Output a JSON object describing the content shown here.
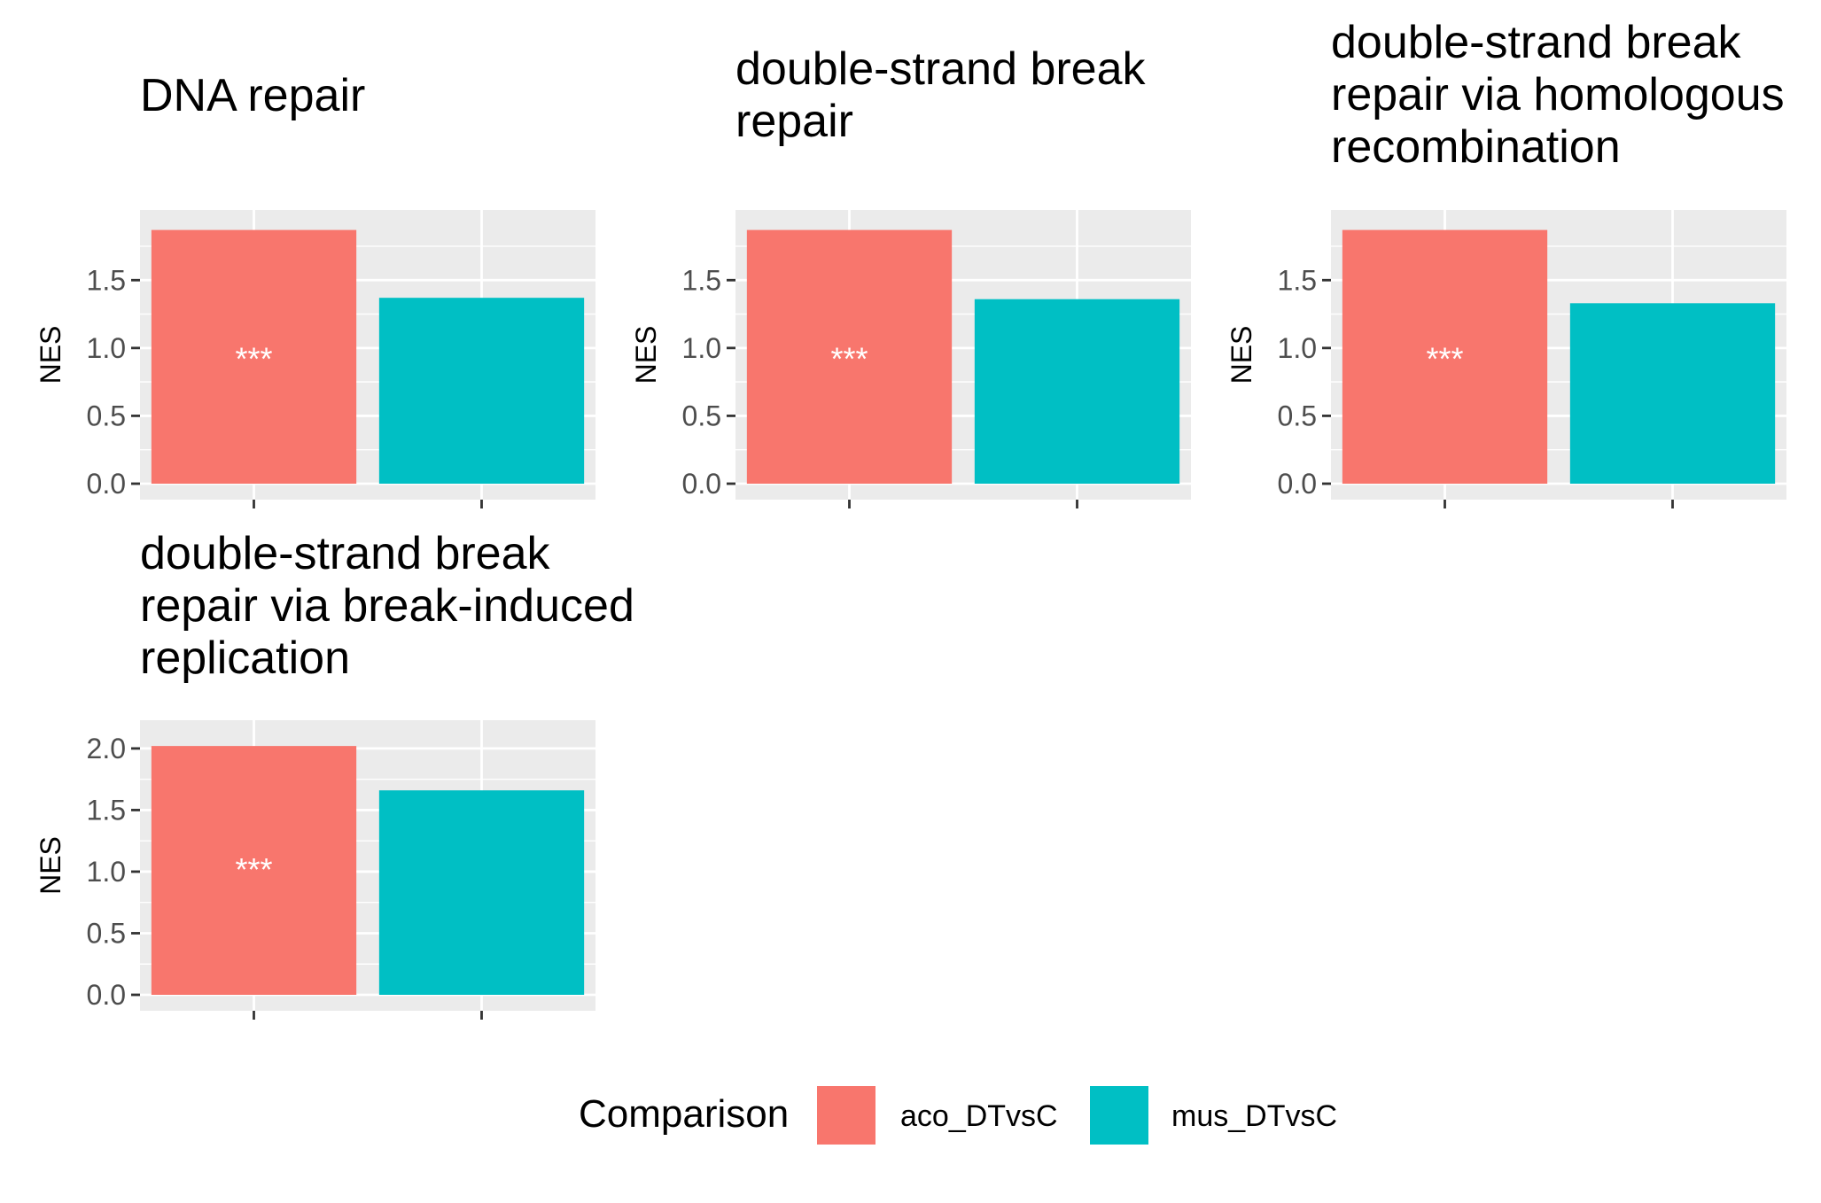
{
  "chart_data": {
    "type": "bar",
    "ylabel": "NES",
    "categories": [
      "aco_DTvsC",
      "mus_DTvsC"
    ],
    "colors": {
      "aco_DTvsC": "#F8766D",
      "mus_DTvsC": "#00BFC4"
    },
    "panel_background": "#EBEBEB",
    "grid": true,
    "legend_position": "bottom",
    "panels": [
      {
        "title": [
          "DNA repair"
        ],
        "values": [
          1.87,
          1.37
        ],
        "significance": [
          "***",
          ""
        ],
        "ylim": [
          0,
          1.9
        ],
        "yticks": [
          "0.0",
          "0.5",
          "1.0",
          "1.5"
        ]
      },
      {
        "title": [
          "double-strand break",
          "repair"
        ],
        "values": [
          1.87,
          1.36
        ],
        "significance": [
          "***",
          ""
        ],
        "ylim": [
          0,
          1.9
        ],
        "yticks": [
          "0.0",
          "0.5",
          "1.0",
          "1.5"
        ]
      },
      {
        "title": [
          "double-strand break",
          "repair via homologous",
          "recombination"
        ],
        "values": [
          1.87,
          1.33
        ],
        "significance": [
          "***",
          ""
        ],
        "ylim": [
          0,
          1.9
        ],
        "yticks": [
          "0.0",
          "0.5",
          "1.0",
          "1.5"
        ]
      },
      {
        "title": [
          "double-strand break",
          "repair via break-induced",
          "replication"
        ],
        "values": [
          2.02,
          1.66
        ],
        "significance": [
          "***",
          ""
        ],
        "ylim": [
          0,
          2.1
        ],
        "yticks": [
          "0.0",
          "0.5",
          "1.0",
          "1.5",
          "2.0"
        ]
      }
    ]
  },
  "legend": {
    "title": "Comparison",
    "items": [
      {
        "label": "aco_DTvsC",
        "color": "#F8766D"
      },
      {
        "label": "mus_DTvsC",
        "color": "#00BFC4"
      }
    ]
  }
}
